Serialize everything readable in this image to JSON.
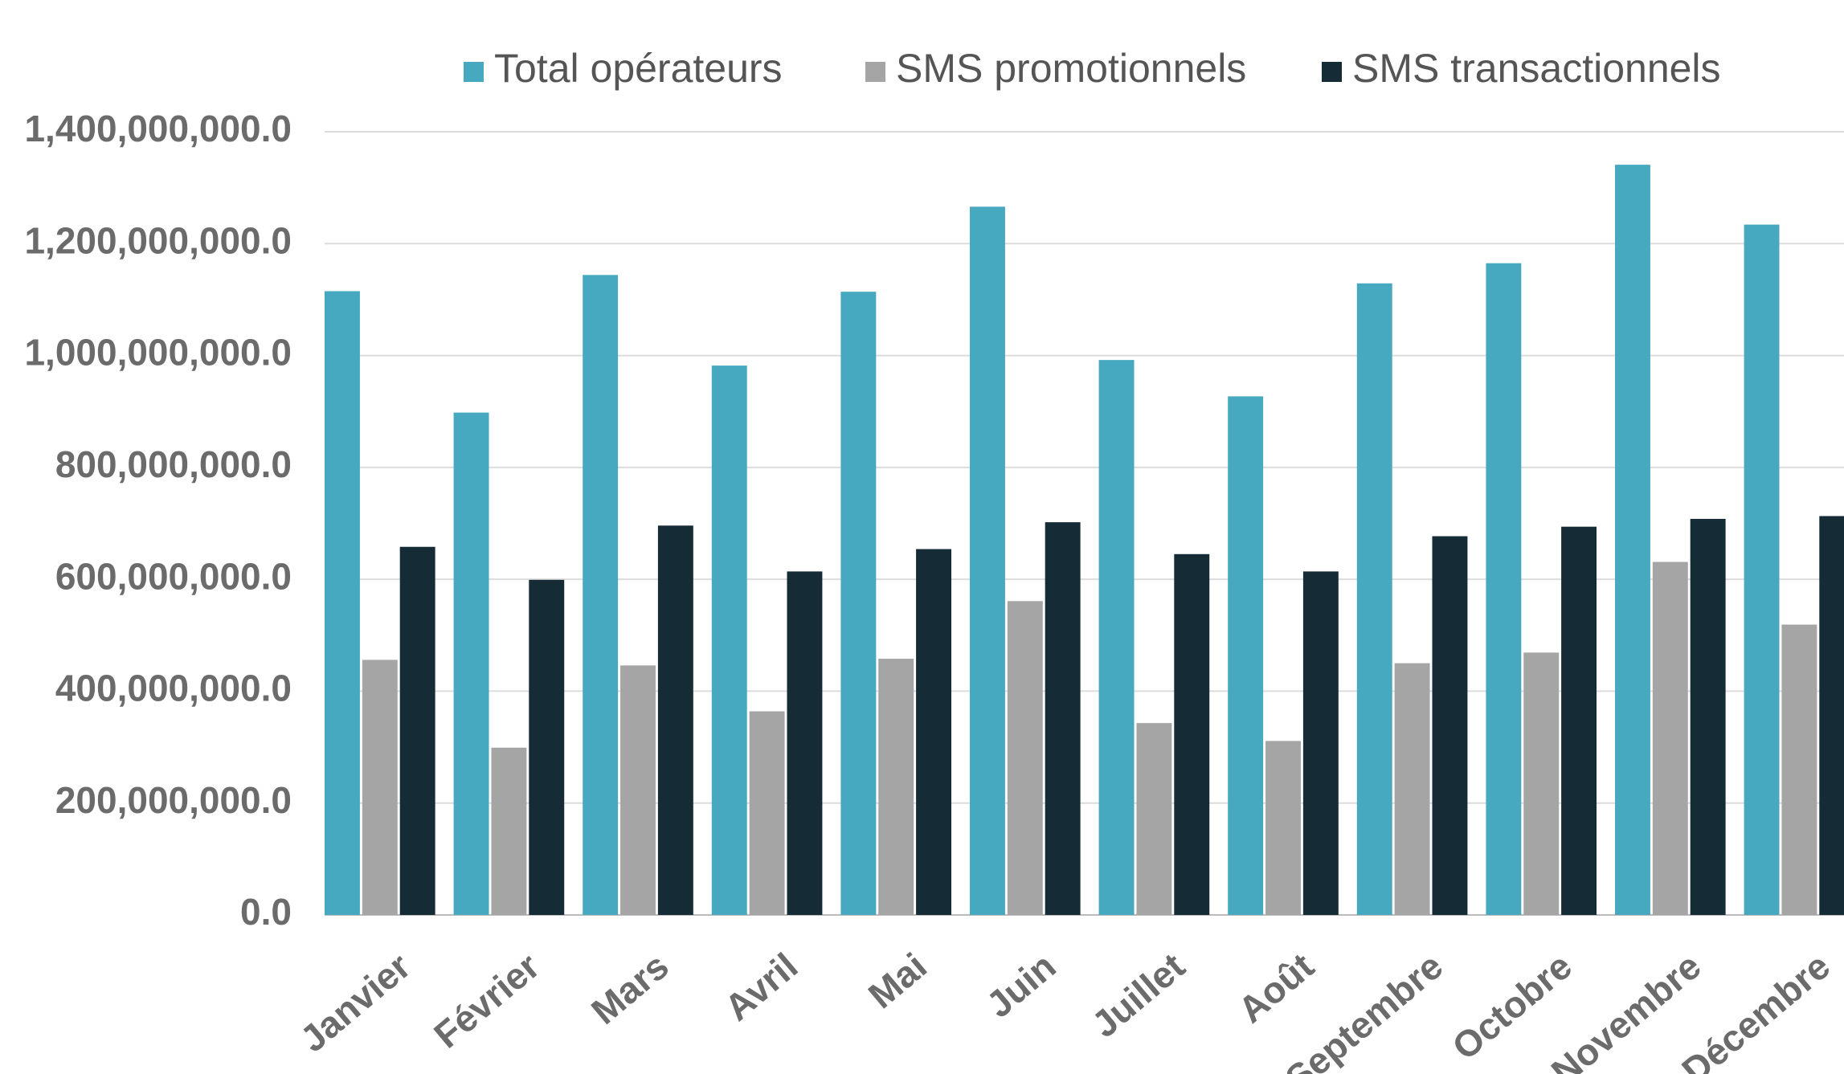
{
  "chart_data": {
    "type": "bar",
    "categories": [
      "Janvier",
      "Février",
      "Mars",
      "Avril",
      "Mai",
      "Juin",
      "Juillet",
      "Août",
      "Septembre",
      "Octobre",
      "Novembre",
      "Décembre"
    ],
    "series": [
      {
        "name": "Total opérateurs",
        "color": "#47a9c0",
        "values": [
          1115000000,
          898000000,
          1144000000,
          982000000,
          1114000000,
          1266000000,
          992000000,
          927000000,
          1129000000,
          1165000000,
          1341000000,
          1234000000
        ]
      },
      {
        "name": "SMS promotionnels",
        "color": "#a6a5a6",
        "values": [
          456000000,
          299000000,
          446000000,
          364000000,
          458000000,
          561000000,
          343000000,
          311000000,
          450000000,
          469000000,
          631000000,
          519000000
        ]
      },
      {
        "name": "SMS transactionnels",
        "color": "#152b36",
        "values": [
          658000000,
          599000000,
          696000000,
          614000000,
          654000000,
          702000000,
          645000000,
          614000000,
          677000000,
          694000000,
          708000000,
          713000000
        ]
      }
    ],
    "ylim": [
      0,
      1400000000
    ],
    "yticks": [
      {
        "value": 0,
        "label": "0.0"
      },
      {
        "value": 200000000,
        "label": "200,000,000.0"
      },
      {
        "value": 400000000,
        "label": "400,000,000.0"
      },
      {
        "value": 600000000,
        "label": "600,000,000.0"
      },
      {
        "value": 800000000,
        "label": "800,000,000.0"
      },
      {
        "value": 1000000000,
        "label": "1,000,000,000.0"
      },
      {
        "value": 1200000000,
        "label": "1,200,000,000.0"
      },
      {
        "value": 1400000000,
        "label": "1,400,000,000.0"
      }
    ],
    "grid": true,
    "legend": "top"
  }
}
